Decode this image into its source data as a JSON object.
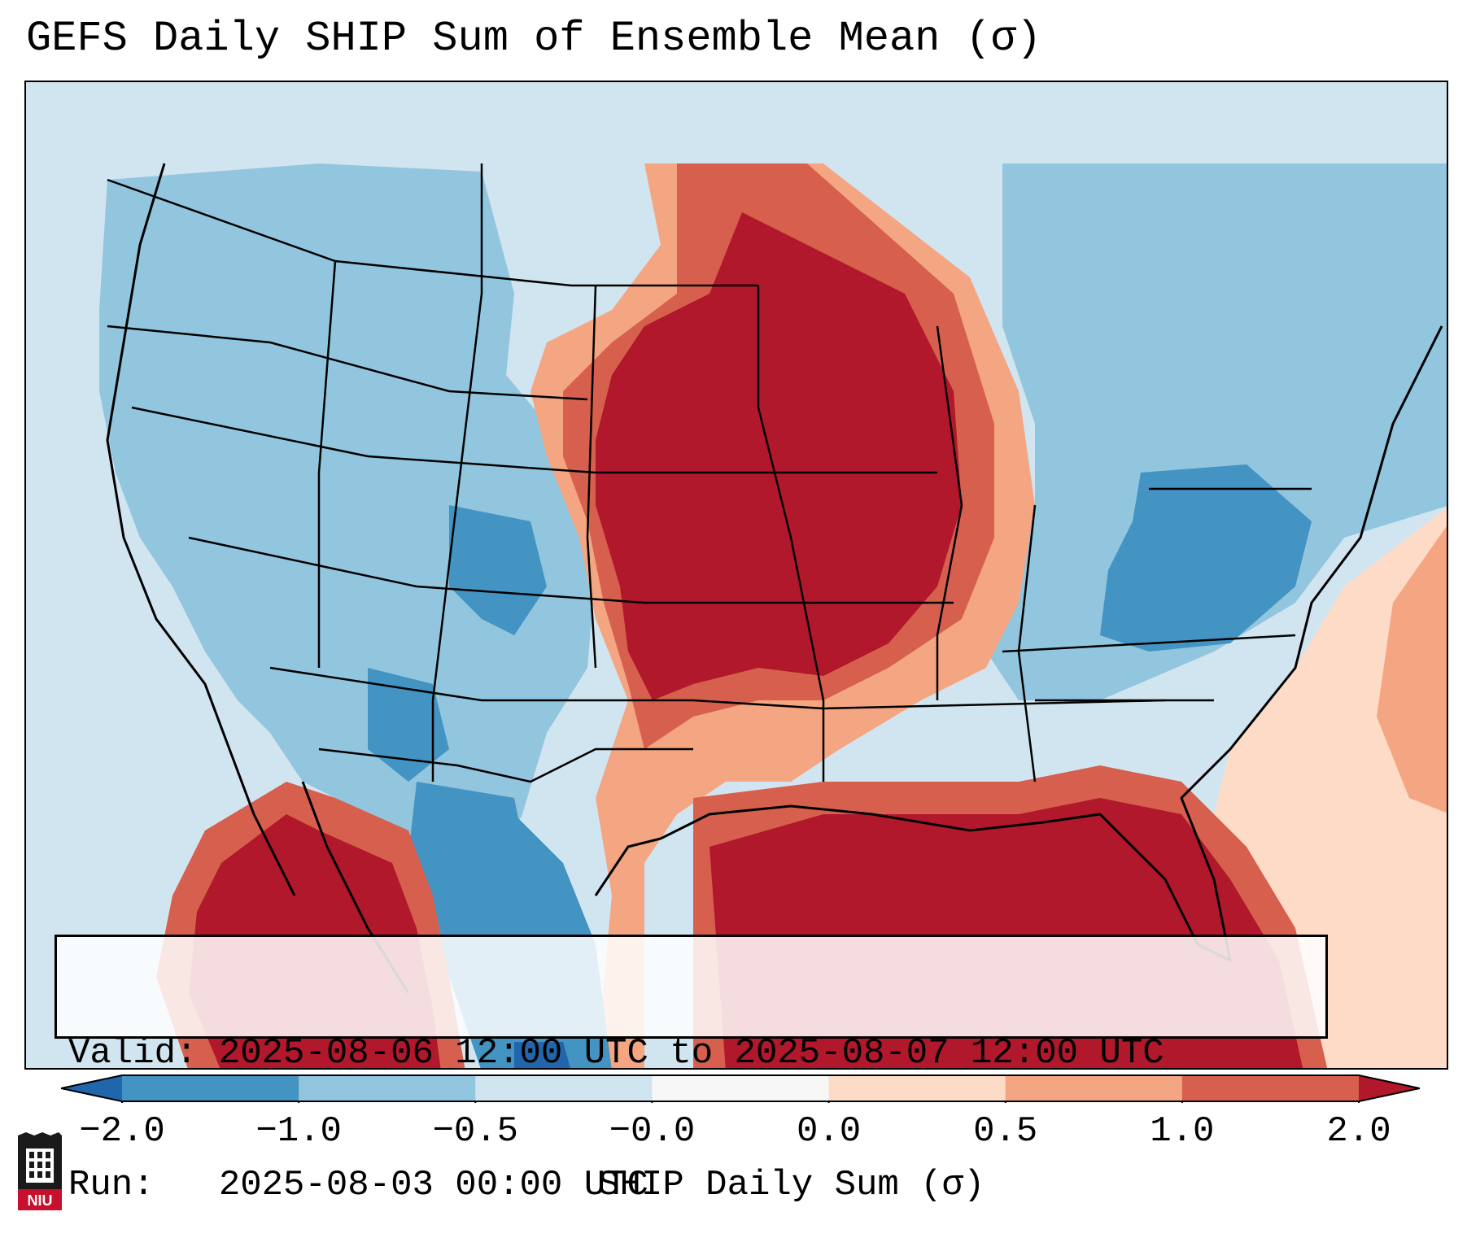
{
  "title": "GEFS Daily SHIP Sum of Ensemble Mean (σ)",
  "infobox": {
    "valid_label": "Valid:",
    "valid_value": "2025-08-06 12:00 UTC to 2025-08-07 12:00 UTC",
    "run_label": "Run:",
    "run_value": "2025-08-03 00:00 UTC"
  },
  "colorbar": {
    "label": "SHIP Daily Sum (σ)",
    "ticks": [
      "−2.0",
      "−1.0",
      "−0.5",
      "−0.0",
      "0.0",
      "0.5",
      "1.0",
      "2.0"
    ],
    "bins": [
      {
        "range": "<-2.0",
        "color": "#2166ac"
      },
      {
        "range": "-2.0 to -1.0",
        "color": "#4393c3"
      },
      {
        "range": "-1.0 to -0.5",
        "color": "#92c5de"
      },
      {
        "range": "-0.5 to -0.0",
        "color": "#d1e5f0"
      },
      {
        "range": "-0.0 to 0.0",
        "color": "#f7f7f7"
      },
      {
        "range": "0.0 to 0.5",
        "color": "#fddbc7"
      },
      {
        "range": "0.5 to 1.0",
        "color": "#f4a582"
      },
      {
        "range": "1.0 to 2.0",
        "color": "#d6604d"
      },
      {
        "range": ">2.0",
        "color": "#b2182b"
      }
    ]
  },
  "map": {
    "region": "Contiguous United States, southern Canada, northern Mexico, Gulf of Mexico",
    "regions_high_positive": [
      "Northern Plains",
      "Upper Midwest",
      "Southern Plains",
      "Gulf of Mexico",
      "Florida",
      "Western Mexico"
    ],
    "regions_negative": [
      "Intermountain West",
      "Four Corners",
      "Mid-Atlantic",
      "Carolinas",
      "Great Lakes",
      "Northeast"
    ],
    "colors": {
      "strong_pos": "#b2182b",
      "pos": "#d6604d",
      "weak_pos": "#f4a582",
      "slight_pos": "#fddbc7",
      "slight_neg": "#d1e5f0",
      "weak_neg": "#92c5de",
      "neg": "#4393c3",
      "strong_neg": "#2166ac"
    }
  },
  "logo": {
    "text": "NIU"
  }
}
